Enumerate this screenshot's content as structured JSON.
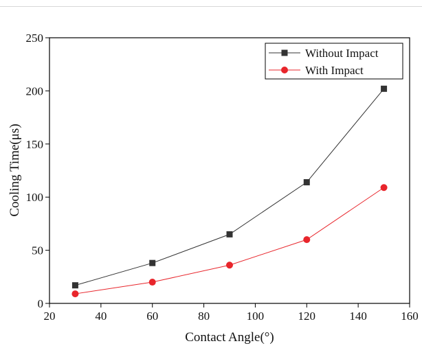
{
  "chart_data": {
    "type": "line",
    "title": "",
    "xlabel": "Contact Angle(°)",
    "ylabel": "Cooling Time(μs)",
    "xlim": [
      20,
      160
    ],
    "ylim": [
      0,
      250
    ],
    "xticks": [
      20,
      40,
      60,
      80,
      100,
      120,
      140,
      160
    ],
    "yticks": [
      0,
      50,
      100,
      150,
      200,
      250
    ],
    "x": [
      30,
      60,
      90,
      120,
      150
    ],
    "series": [
      {
        "name": "Without Impact",
        "values": [
          17,
          38,
          65,
          114,
          202
        ],
        "color": "#333333",
        "marker": "square"
      },
      {
        "name": "With Impact",
        "values": [
          9,
          20,
          36,
          60,
          109
        ],
        "color": "#e8252b",
        "marker": "circle"
      }
    ],
    "legend_position": "top-right",
    "grid": false
  }
}
